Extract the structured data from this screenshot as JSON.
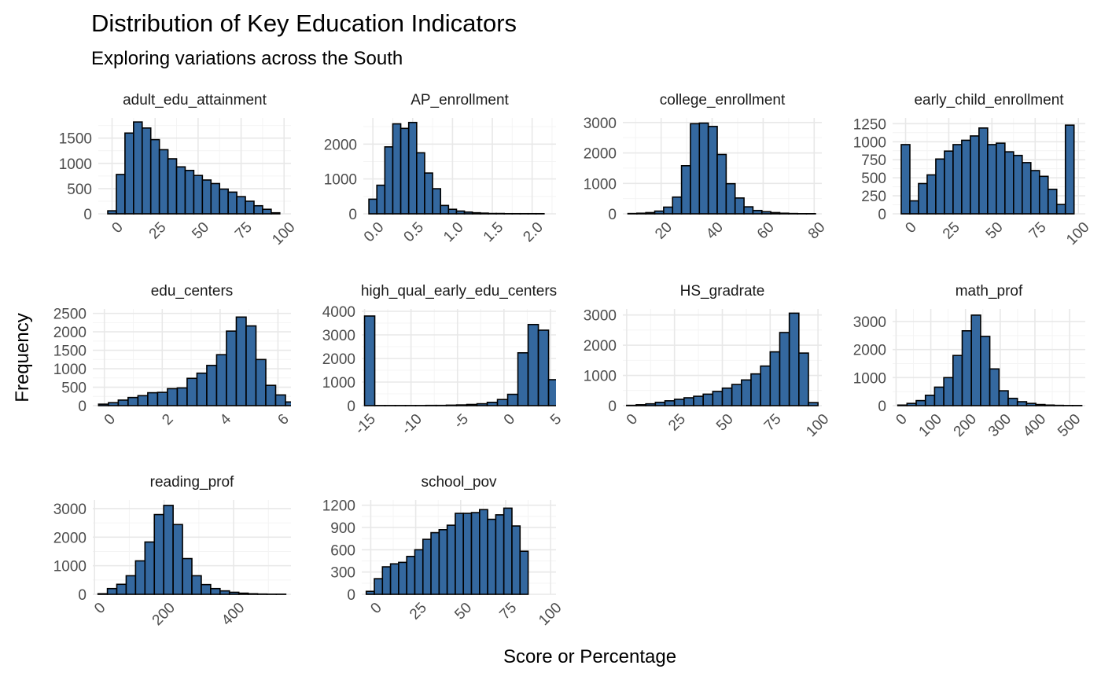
{
  "title": "Distribution of Key Education Indicators",
  "subtitle": "Exploring variations across the South",
  "xlabel": "Score or Percentage",
  "ylabel": "Frequency",
  "colors": {
    "bar_fill": "#34689f",
    "bar_stroke": "#000000",
    "grid_major": "#e8e8e8",
    "grid_minor": "#f4f4f4"
  },
  "chart_data": [
    {
      "type": "bar",
      "facet": "adult_edu_attainment",
      "bins_start": -2.5,
      "bin_width": 5,
      "values": [
        60,
        780,
        1600,
        1820,
        1700,
        1470,
        1270,
        1090,
        930,
        860,
        760,
        670,
        600,
        490,
        430,
        340,
        250,
        160,
        90,
        20
      ],
      "xlim": [
        -8,
        104
      ],
      "ylim": [
        0,
        1900
      ],
      "xticks": [
        0,
        25,
        50,
        75,
        100
      ],
      "xtick_labels": [
        "0",
        "25",
        "50",
        "75",
        "100"
      ],
      "yticks": [
        0,
        500,
        1000,
        1500
      ],
      "ytick_labels": [
        "0",
        "500",
        "1000",
        "1500"
      ]
    },
    {
      "type": "bar",
      "facet": "AP_enrollment",
      "bins_start": -0.05,
      "bin_width": 0.1,
      "values": [
        420,
        820,
        1920,
        2580,
        2450,
        2620,
        1750,
        1170,
        720,
        240,
        130,
        80,
        50,
        30,
        20,
        10,
        10,
        5,
        5,
        5,
        5,
        5
      ],
      "xlim": [
        -0.12,
        2.3
      ],
      "ylim": [
        0,
        2750
      ],
      "xticks": [
        0,
        0.5,
        1,
        1.5,
        2
      ],
      "xtick_labels": [
        "0.0",
        "0.5",
        "1.0",
        "1.5",
        "2.0"
      ],
      "yticks": [
        0,
        1000,
        2000
      ],
      "ytick_labels": [
        "0",
        "1000",
        "2000"
      ]
    },
    {
      "type": "bar",
      "facet": "college_enrollment",
      "bins_start": 7,
      "bin_width": 3.5,
      "values": [
        10,
        20,
        40,
        90,
        220,
        550,
        1580,
        2960,
        2980,
        2870,
        1950,
        990,
        520,
        230,
        110,
        70,
        40,
        20,
        10,
        5,
        5
      ],
      "xlim": [
        5,
        83
      ],
      "ylim": [
        0,
        3150
      ],
      "xticks": [
        20,
        40,
        60,
        80
      ],
      "xtick_labels": [
        "20",
        "40",
        "60",
        "80"
      ],
      "yticks": [
        0,
        1000,
        2000,
        3000
      ],
      "ytick_labels": [
        "0",
        "1000",
        "2000",
        "3000"
      ]
    },
    {
      "type": "bar",
      "facet": "early_child_enrollment",
      "bins_start": -2.5,
      "bin_width": 5,
      "values": [
        960,
        180,
        420,
        540,
        760,
        870,
        960,
        1020,
        1080,
        1190,
        960,
        980,
        860,
        810,
        710,
        600,
        520,
        340,
        130,
        1230
      ],
      "xlim": [
        -7.5,
        104
      ],
      "ylim": [
        0,
        1330
      ],
      "xticks": [
        0,
        25,
        50,
        75,
        100
      ],
      "xtick_labels": [
        "0",
        "25",
        "50",
        "75",
        "100"
      ],
      "yticks": [
        0,
        250,
        500,
        750,
        1000,
        1250
      ],
      "ytick_labels": [
        "0",
        "250",
        "500",
        "750",
        "1000",
        "1250"
      ]
    },
    {
      "type": "bar",
      "facet": "edu_centers",
      "bins_start": -0.2,
      "bin_width": 0.34,
      "values": [
        40,
        80,
        150,
        220,
        270,
        350,
        360,
        460,
        480,
        740,
        880,
        1090,
        1380,
        2020,
        2400,
        2160,
        1250,
        550,
        290,
        100
      ],
      "xlim": [
        -0.4,
        6.45
      ],
      "ylim": [
        0,
        2620
      ],
      "xticks": [
        0,
        2,
        4,
        6
      ],
      "xtick_labels": [
        "0",
        "2",
        "4",
        "6"
      ],
      "yticks": [
        0,
        500,
        1000,
        1500,
        2000,
        2500
      ],
      "ytick_labels": [
        "0",
        "500",
        "1000",
        "1500",
        "2000",
        "2500"
      ]
    },
    {
      "type": "bar",
      "facet": "high_qual_early_edu_centers",
      "bins_start": -15,
      "bin_width": 1.1,
      "values": [
        3800,
        5,
        5,
        5,
        5,
        5,
        10,
        10,
        20,
        30,
        50,
        80,
        140,
        260,
        480,
        2240,
        3440,
        3200,
        1100,
        330,
        200
      ],
      "xlim": [
        -15.3,
        5.6
      ],
      "ylim": [
        0,
        4100
      ],
      "xticks": [
        -15,
        -10,
        -5,
        0,
        5
      ],
      "xtick_labels": [
        "-15",
        "-10",
        "-5",
        "0",
        "5"
      ],
      "yticks": [
        0,
        1000,
        2000,
        3000,
        4000
      ],
      "ytick_labels": [
        "0",
        "1000",
        "2000",
        "3000",
        "4000"
      ]
    },
    {
      "type": "bar",
      "facet": "HS_gradrate",
      "bins_start": 0,
      "bin_width": 5,
      "values": [
        10,
        30,
        60,
        110,
        160,
        210,
        260,
        310,
        380,
        470,
        580,
        700,
        850,
        1050,
        1310,
        1780,
        2420,
        3060,
        1740,
        100
      ],
      "xlim": [
        -2,
        102
      ],
      "ylim": [
        0,
        3200
      ],
      "xticks": [
        0,
        25,
        50,
        75,
        100
      ],
      "xtick_labels": [
        "0",
        "25",
        "50",
        "75",
        "100"
      ],
      "yticks": [
        0,
        1000,
        2000,
        3000
      ],
      "ytick_labels": [
        "0",
        "1000",
        "2000",
        "3000"
      ]
    },
    {
      "type": "bar",
      "facet": "math_prof",
      "bins_start": 5,
      "bin_width": 26.5,
      "values": [
        20,
        80,
        180,
        370,
        660,
        1000,
        1790,
        2670,
        3230,
        2470,
        1310,
        530,
        260,
        140,
        80,
        40,
        20,
        10,
        5,
        5
      ],
      "xlim": [
        -10,
        545
      ],
      "ylim": [
        0,
        3450
      ],
      "xticks": [
        0,
        100,
        200,
        300,
        400,
        500
      ],
      "xtick_labels": [
        "0",
        "100",
        "200",
        "300",
        "400",
        "500"
      ],
      "yticks": [
        0,
        1000,
        2000,
        3000
      ],
      "ytick_labels": [
        "0",
        "1000",
        "2000",
        "3000"
      ]
    },
    {
      "type": "bar",
      "facet": "reading_prof",
      "bins_start": 10,
      "bin_width": 27,
      "values": [
        20,
        200,
        350,
        650,
        1170,
        1830,
        2790,
        3110,
        2440,
        1250,
        650,
        340,
        200,
        120,
        70,
        40,
        20,
        10,
        5,
        5
      ],
      "xlim": [
        -5,
        565
      ],
      "ylim": [
        0,
        3300
      ],
      "xticks": [
        0,
        200,
        400
      ],
      "xtick_labels": [
        "0",
        "200",
        "400"
      ],
      "yticks": [
        0,
        1000,
        2000,
        3000
      ],
      "ytick_labels": [
        "0",
        "1000",
        "2000",
        "3000"
      ]
    },
    {
      "type": "bar",
      "facet": "school_pov",
      "bins_start": -2.5,
      "bin_width": 4.5,
      "values": [
        40,
        210,
        370,
        410,
        430,
        510,
        600,
        740,
        830,
        870,
        930,
        1090,
        1090,
        1100,
        1140,
        1010,
        1070,
        1160,
        920,
        580
      ],
      "xlim": [
        -5,
        103
      ],
      "ylim": [
        0,
        1270
      ],
      "xticks": [
        0,
        25,
        50,
        75,
        100
      ],
      "xtick_labels": [
        "0",
        "25",
        "50",
        "75",
        "100"
      ],
      "yticks": [
        0,
        300,
        600,
        900,
        1200
      ],
      "ytick_labels": [
        "0",
        "300",
        "600",
        "900",
        "1200"
      ]
    }
  ]
}
